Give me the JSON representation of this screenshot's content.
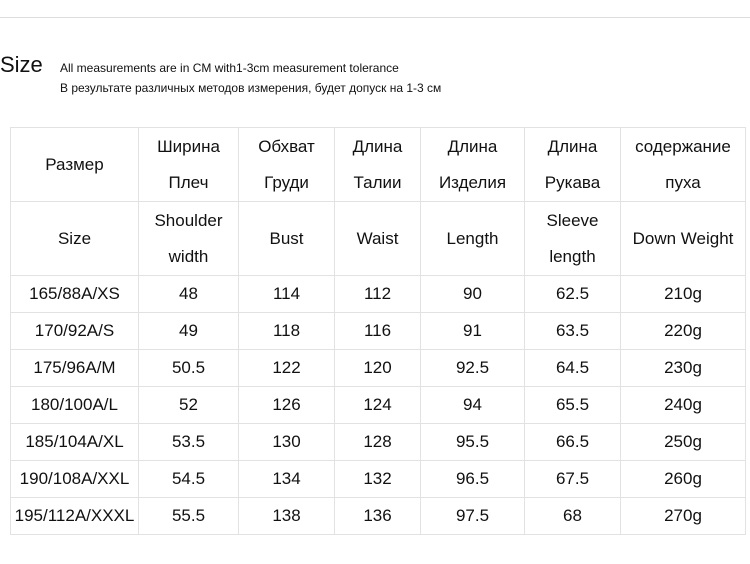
{
  "header": {
    "title": "Size",
    "notes": [
      "All measurements are in CM with1-3cm measurement tolerance",
      "В результате различных методов измерения, будет допуск на 1-3 см"
    ]
  },
  "table": {
    "header_rows": [
      [
        [
          "Размер"
        ],
        [
          "Ширина",
          "Плеч"
        ],
        [
          "Обхват",
          "Груди"
        ],
        [
          "Длина",
          "Талии"
        ],
        [
          "Длина",
          "Изделия"
        ],
        [
          "Длина",
          "Рукава"
        ],
        [
          "содержание",
          "пуха"
        ]
      ],
      [
        [
          "Size"
        ],
        [
          "Shoulder",
          "width"
        ],
        [
          "Bust"
        ],
        [
          "Waist"
        ],
        [
          "Length"
        ],
        [
          "Sleeve",
          "length"
        ],
        [
          "Down Weight"
        ]
      ]
    ],
    "rows": [
      [
        "165/88A/XS",
        "48",
        "114",
        "112",
        "90",
        "62.5",
        "210g"
      ],
      [
        "170/92A/S",
        "49",
        "118",
        "116",
        "91",
        "63.5",
        "220g"
      ],
      [
        "175/96A/M",
        "50.5",
        "122",
        "120",
        "92.5",
        "64.5",
        "230g"
      ],
      [
        "180/100A/L",
        "52",
        "126",
        "124",
        "94",
        "65.5",
        "240g"
      ],
      [
        "185/104A/XL",
        "53.5",
        "130",
        "128",
        "95.5",
        "66.5",
        "250g"
      ],
      [
        "190/108A/XXL",
        "54.5",
        "134",
        "132",
        "96.5",
        "67.5",
        "260g"
      ],
      [
        "195/112A/XXXL",
        "55.5",
        "138",
        "136",
        "97.5",
        "68",
        "270g"
      ]
    ]
  }
}
